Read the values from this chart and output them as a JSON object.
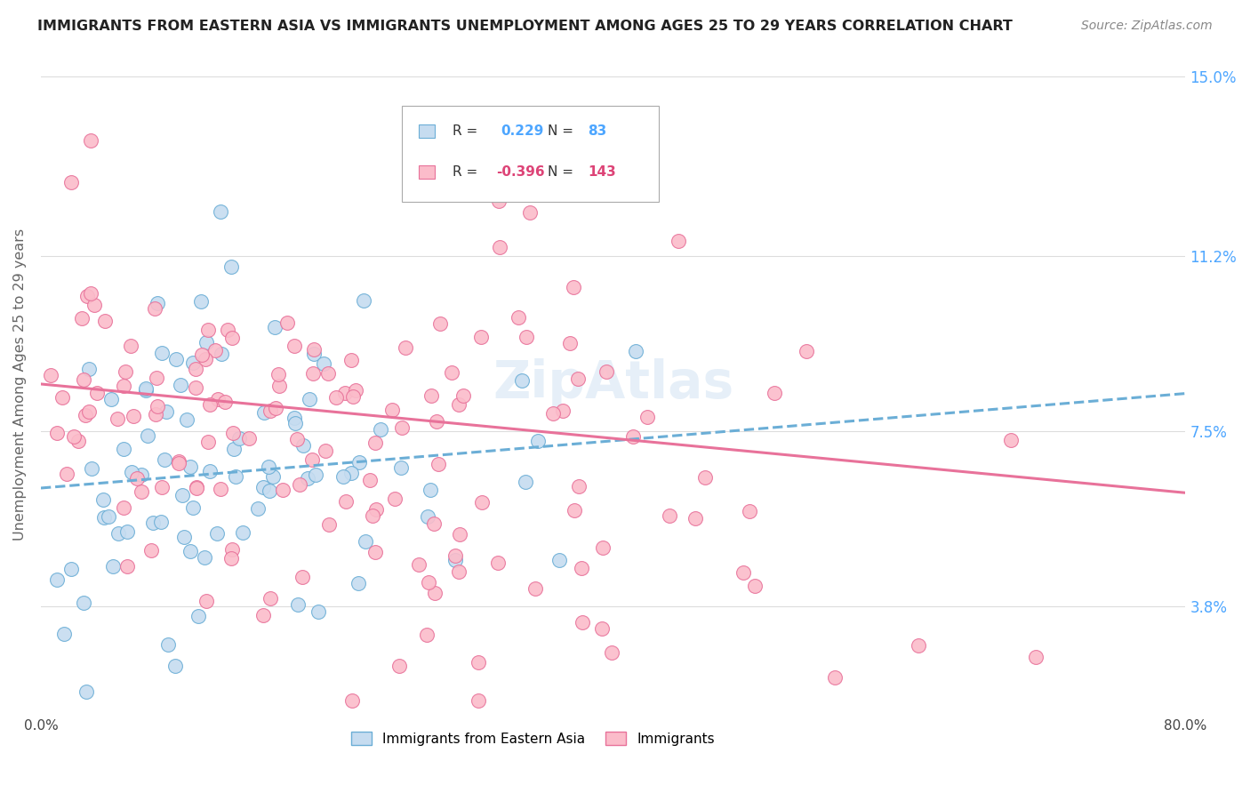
{
  "title": "IMMIGRANTS FROM EASTERN ASIA VS IMMIGRANTS UNEMPLOYMENT AMONG AGES 25 TO 29 YEARS CORRELATION CHART",
  "source": "Source: ZipAtlas.com",
  "ylabel": "Unemployment Among Ages 25 to 29 years",
  "xlim": [
    0,
    0.8
  ],
  "ylim": [
    0.015,
    0.155
  ],
  "yticks": [
    0.038,
    0.075,
    0.112,
    0.15
  ],
  "ytick_labels": [
    "3.8%",
    "7.5%",
    "11.2%",
    "15.0%"
  ],
  "xtick_positions": [
    0.0,
    0.1,
    0.2,
    0.3,
    0.4,
    0.5,
    0.6,
    0.7,
    0.8
  ],
  "xtick_labels": [
    "0.0%",
    "",
    "",
    "",
    "",
    "",
    "",
    "",
    "80.0%"
  ],
  "series1_color": "#c6dcf0",
  "series1_edge": "#6baed6",
  "series2_color": "#fbbcca",
  "series2_edge": "#e8729a",
  "trend1_color": "#6baed6",
  "trend2_color": "#e8729a",
  "background_color": "#ffffff",
  "grid_color": "#dddddd",
  "tick_color_right": "#4da6ff",
  "watermark": "ZipAtlas",
  "N1": 83,
  "N2": 143,
  "R1": 0.229,
  "R2": -0.396,
  "trend1_x0": 0.0,
  "trend1_x1": 0.8,
  "trend1_y0": 0.063,
  "trend1_y1": 0.083,
  "trend2_x0": 0.0,
  "trend2_x1": 0.8,
  "trend2_y0": 0.085,
  "trend2_y1": 0.062
}
